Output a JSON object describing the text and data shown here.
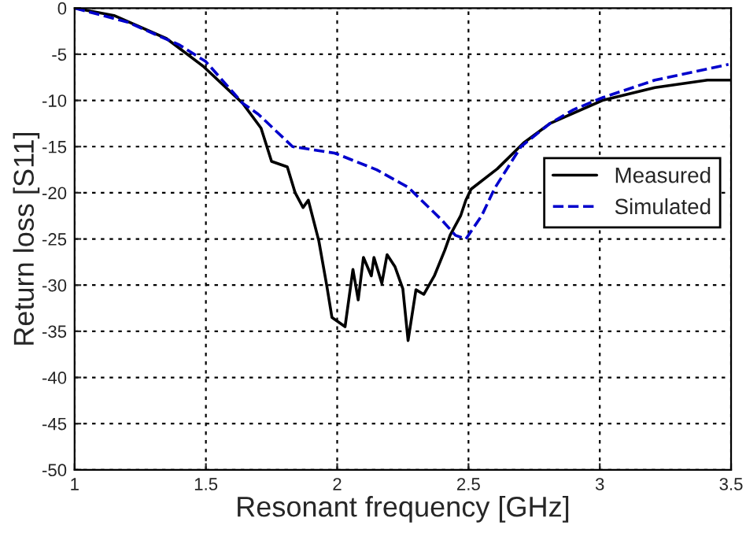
{
  "chart_data": {
    "type": "line",
    "xlabel": "Resonant frequency [GHz]",
    "ylabel": "Return loss [S11]",
    "xlim": [
      1,
      3.5
    ],
    "ylim": [
      -50,
      0
    ],
    "xticks": [
      1,
      1.5,
      2,
      2.5,
      3,
      3.5
    ],
    "yticks": [
      -50,
      -45,
      -40,
      -35,
      -30,
      -25,
      -20,
      -15,
      -10,
      -5,
      0
    ],
    "grid": true,
    "legend": "right",
    "series": [
      {
        "name": "Measured",
        "color": "#000000",
        "line_style": "solid",
        "x": [
          1,
          1.15,
          1.35,
          1.49,
          1.64,
          1.71,
          1.75,
          1.81,
          1.84,
          1.87,
          1.89,
          1.93,
          1.96,
          1.98,
          2.03,
          2.06,
          2.08,
          2.1,
          2.13,
          2.14,
          2.17,
          2.19,
          2.22,
          2.25,
          2.27,
          2.3,
          2.33,
          2.37,
          2.41,
          2.43,
          2.47,
          2.49,
          2.51,
          2.61,
          2.71,
          2.81,
          3.01,
          3.21,
          3.41,
          3.5
        ],
        "values": [
          0,
          -0.8,
          -3.3,
          -6.3,
          -10.3,
          -13,
          -16.6,
          -17.2,
          -20,
          -21.6,
          -20.8,
          -25.2,
          -30,
          -33.5,
          -34.5,
          -28.3,
          -31.6,
          -27,
          -29,
          -27,
          -29.8,
          -26.7,
          -28,
          -30.4,
          -36,
          -30.5,
          -31,
          -29,
          -26.2,
          -24.6,
          -22.5,
          -20.8,
          -19.6,
          -17.4,
          -14.6,
          -12.5,
          -10,
          -8.6,
          -7.8,
          -7.8
        ]
      },
      {
        "name": "Simulated",
        "color": "#0000cc",
        "line_style": "dashed",
        "x": [
          1,
          1.2,
          1.4,
          1.5,
          1.64,
          1.7,
          1.83,
          1.99,
          2.15,
          2.27,
          2.4,
          2.45,
          2.49,
          2.55,
          2.6,
          2.7,
          2.81,
          2.9,
          3.01,
          3.21,
          3.49
        ],
        "values": [
          0,
          -1.5,
          -4,
          -5.8,
          -10.3,
          -11.5,
          -15,
          -15.7,
          -17.5,
          -19.4,
          -23,
          -24.6,
          -25,
          -22.5,
          -19.5,
          -15,
          -12.5,
          -11,
          -9.7,
          -7.8,
          -6.1
        ]
      }
    ]
  }
}
